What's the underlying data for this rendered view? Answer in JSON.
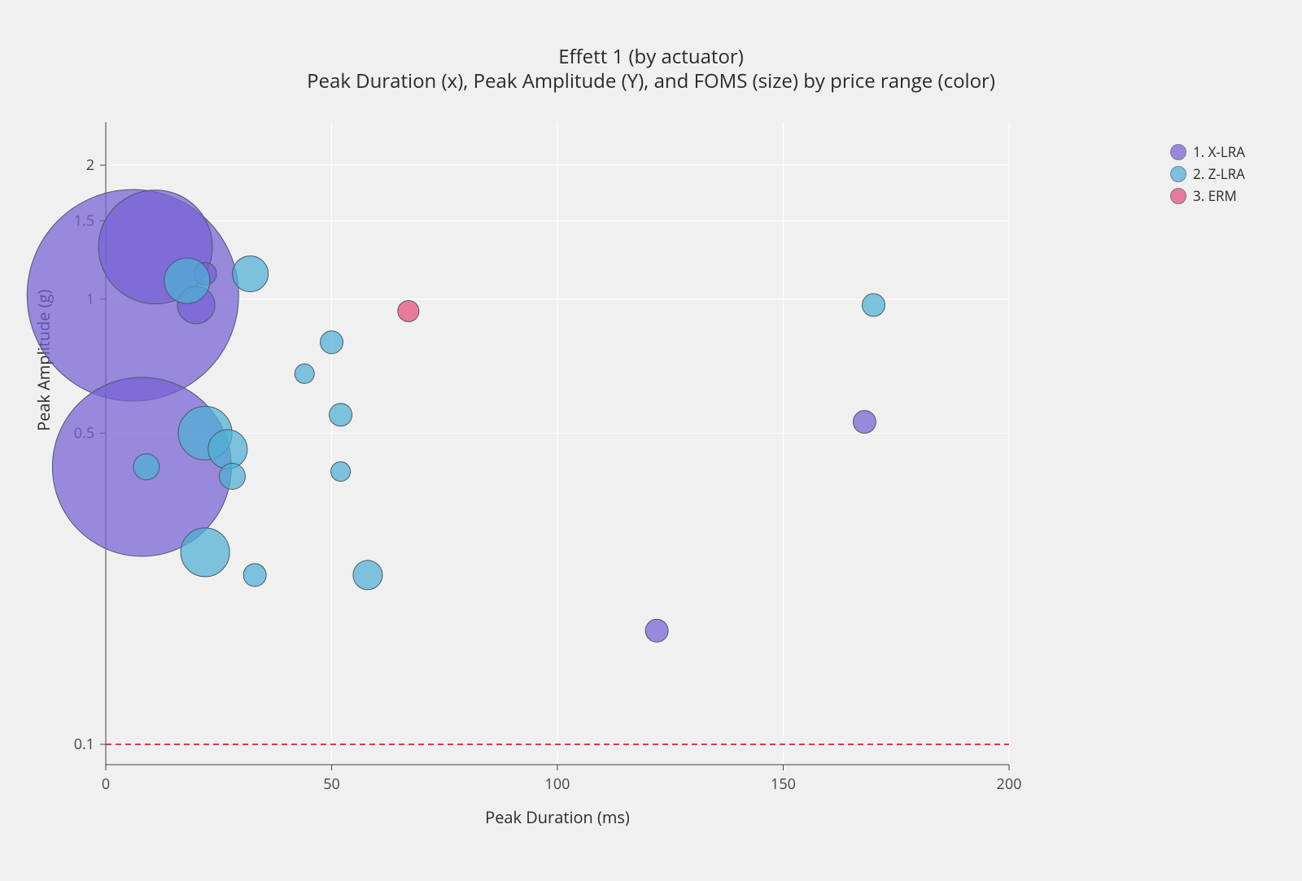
{
  "chart": {
    "type": "bubble",
    "title_line1": "Effett 1 (by actuator)",
    "title_line2": "Peak Duration (x), Peak Amplitude (Y), and FOMS (size) by price range (color)",
    "title_fontsize": 24,
    "title_color": "#2a2a2a",
    "background_color": "#f0f0f0",
    "plot_background": "#f0f0f0",
    "grid_color": "#ffffff",
    "axis_line_color": "#444444",
    "font_family": "Verdana",
    "x_axis": {
      "label": "Peak Duration (ms)",
      "label_fontsize": 20,
      "min": 0,
      "max": 200,
      "ticks": [
        0,
        50,
        100,
        150,
        200
      ],
      "tick_fontsize": 18,
      "scale": "linear"
    },
    "y_axis": {
      "label": "Peak Amplitude (g)",
      "label_fontsize": 20,
      "min": 0.09,
      "max": 2.5,
      "ticks": [
        0.1,
        0.5,
        1,
        1.5,
        2
      ],
      "tick_labels": [
        "0.1",
        "0.5",
        "1",
        "1.5",
        "2"
      ],
      "tick_fontsize": 18,
      "scale": "log"
    },
    "reference_line": {
      "y": 0.1,
      "color": "#d8394a",
      "dash": "7 5",
      "width": 2
    },
    "series": [
      {
        "name": "1. X-LRA",
        "color": "#7661d4",
        "opacity": 0.72,
        "stroke": "#4a5a6a",
        "points": [
          {
            "x": 6,
            "y": 1.02,
            "size": 130
          },
          {
            "x": 11,
            "y": 1.31,
            "size": 70
          },
          {
            "x": 8,
            "y": 0.42,
            "size": 110
          },
          {
            "x": 20,
            "y": 0.97,
            "size": 23
          },
          {
            "x": 22,
            "y": 1.14,
            "size": 14
          },
          {
            "x": 122,
            "y": 0.18,
            "size": 14
          },
          {
            "x": 168,
            "y": 0.53,
            "size": 14
          }
        ]
      },
      {
        "name": "2. Z-LRA",
        "color": "#4fb0d4",
        "opacity": 0.72,
        "stroke": "#4a5a6a",
        "points": [
          {
            "x": 18,
            "y": 1.1,
            "size": 28
          },
          {
            "x": 32,
            "y": 1.14,
            "size": 22
          },
          {
            "x": 9,
            "y": 0.42,
            "size": 16
          },
          {
            "x": 22,
            "y": 0.5,
            "size": 33
          },
          {
            "x": 22,
            "y": 0.27,
            "size": 30
          },
          {
            "x": 27,
            "y": 0.46,
            "size": 24
          },
          {
            "x": 28,
            "y": 0.4,
            "size": 16
          },
          {
            "x": 33,
            "y": 0.24,
            "size": 14
          },
          {
            "x": 44,
            "y": 0.68,
            "size": 12
          },
          {
            "x": 50,
            "y": 0.8,
            "size": 14
          },
          {
            "x": 52,
            "y": 0.55,
            "size": 14
          },
          {
            "x": 52,
            "y": 0.41,
            "size": 12
          },
          {
            "x": 58,
            "y": 0.24,
            "size": 18
          },
          {
            "x": 170,
            "y": 0.97,
            "size": 14
          }
        ]
      },
      {
        "name": "3. ERM",
        "color": "#e85a82",
        "opacity": 0.78,
        "stroke": "#4a5a6a",
        "points": [
          {
            "x": 67,
            "y": 0.94,
            "size": 13
          }
        ]
      }
    ],
    "legend": {
      "position": "top-right",
      "fontsize": 17,
      "marker_size": 20
    }
  }
}
